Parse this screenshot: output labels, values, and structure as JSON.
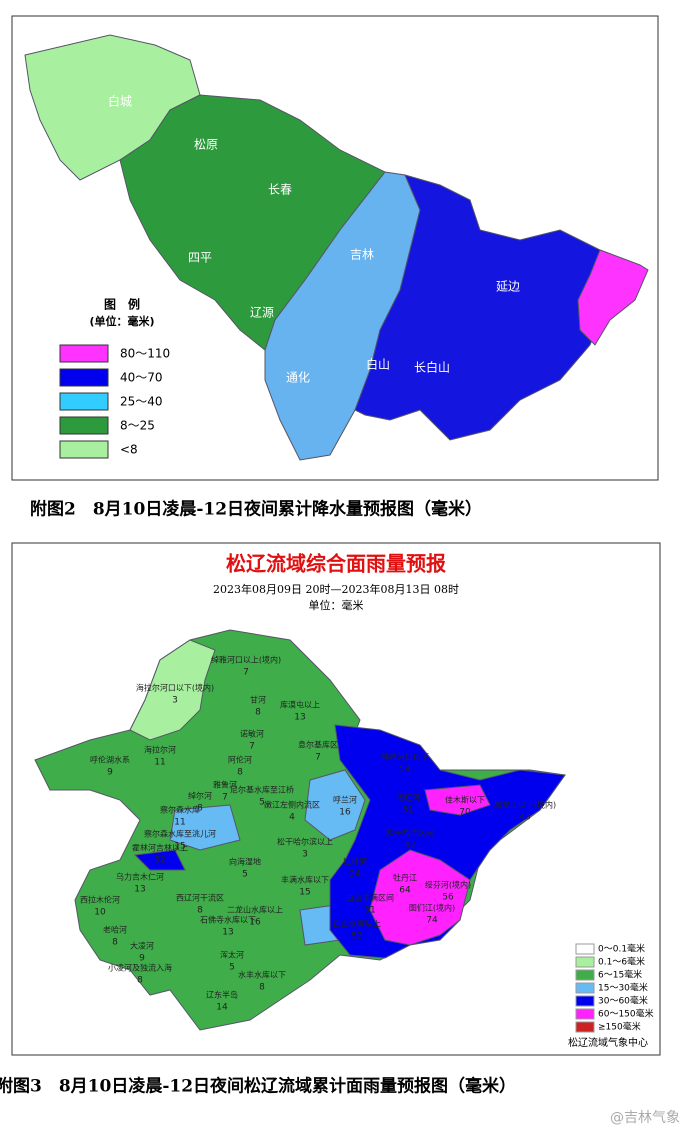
{
  "map1": {
    "labels": [
      "白城",
      "松原",
      "长春",
      "四平",
      "辽源",
      "吉林",
      "通化",
      "白山",
      "长白山",
      "延边"
    ],
    "legend": {
      "title": "图　例",
      "unit": "(单位：毫米)",
      "items": [
        {
          "label": "80～110",
          "color": "#ff33ff"
        },
        {
          "label": "40～70",
          "color": "#0000ee"
        },
        {
          "label": "25～40",
          "color": "#33ccff"
        },
        {
          "label": "8～25",
          "color": "#2e9a3e"
        },
        {
          "label": "<8",
          "color": "#a8f0a0"
        }
      ]
    },
    "caption": "附图2　8月10日凌晨-12日夜间累计降水量预报图（毫米）"
  },
  "map2": {
    "title": "松辽流域综合面雨量预报",
    "subtitle": "2023年08月09日 20时—2023年08月13日 08时",
    "unit": "单位：毫米",
    "regions": [
      {
        "name": "绰雅河口以上(境内)",
        "value": 7
      },
      {
        "name": "海拉尔河口以下(境内)",
        "value": 3
      },
      {
        "name": "甘河",
        "value": 8
      },
      {
        "name": "库漠屯以上",
        "value": 13
      },
      {
        "name": "诺敏河",
        "value": 7
      },
      {
        "name": "息尔基库区",
        "value": 7
      },
      {
        "name": "呼伦湖水系",
        "value": 9
      },
      {
        "name": "海拉尔河",
        "value": 11
      },
      {
        "name": "阿伦河",
        "value": 8
      },
      {
        "name": "雅鲁河",
        "value": 7
      },
      {
        "name": "绰尔河",
        "value": 8
      },
      {
        "name": "尼尔基水库至江桥",
        "value": 5
      },
      {
        "name": "嫩江左侧内流区",
        "value": 4
      },
      {
        "name": "呼兰河",
        "value": 16
      },
      {
        "name": "察尔森水库",
        "value": 11
      },
      {
        "name": "察尔森水库至洮儿河",
        "value": 15
      },
      {
        "name": "霍林河吉林以上",
        "value": 32
      },
      {
        "name": "向海湿地",
        "value": 5
      },
      {
        "name": "松干哈尔滨以上",
        "value": 3
      },
      {
        "name": "绰雅河口以下",
        "value": 54
      },
      {
        "name": "汤旺河",
        "value": 51
      },
      {
        "name": "佳木斯以下",
        "value": 70
      },
      {
        "name": "黑龙江以下(境内)",
        "value": 43
      },
      {
        "name": "松干哈佳区间",
        "value": 42
      },
      {
        "name": "拉林河",
        "value": 24
      },
      {
        "name": "牡丹江",
        "value": 64
      },
      {
        "name": "绥芬河(境内)",
        "value": 56
      },
      {
        "name": "图们江(境内)",
        "value": 74
      },
      {
        "name": "白山丰满区间",
        "value": 31
      },
      {
        "name": "丰满水库以下",
        "value": 15
      },
      {
        "name": "白山水库以上",
        "value": 52
      },
      {
        "name": "二龙山水库以上",
        "value": 16
      },
      {
        "name": "乌力吉木仁河",
        "value": 13
      },
      {
        "name": "西拉木伦河",
        "value": 10
      },
      {
        "name": "西辽河干流区",
        "value": 8
      },
      {
        "name": "石佛寺水库以下",
        "value": 13
      },
      {
        "name": "老哈河",
        "value": 8
      },
      {
        "name": "大凌河",
        "value": 9
      },
      {
        "name": "小凌河及独流入海",
        "value": 8
      },
      {
        "name": "浑太河",
        "value": 5
      },
      {
        "name": "水丰水库以下",
        "value": 8
      },
      {
        "name": "辽东半岛",
        "value": 14
      }
    ],
    "legend": [
      {
        "label": "0～0.1毫米",
        "color": "#ffffff"
      },
      {
        "label": "0.1～6毫米",
        "color": "#a8f0a0"
      },
      {
        "label": "6～15毫米",
        "color": "#3fae4a"
      },
      {
        "label": "15～30毫米",
        "color": "#66bbf5"
      },
      {
        "label": "30～60毫米",
        "color": "#0000ee"
      },
      {
        "label": "60～150毫米",
        "color": "#ff22ff"
      },
      {
        "label": "≥150毫米",
        "color": "#cc2222"
      }
    ],
    "source": "松辽流域气象中心",
    "caption": "附图3　8月10日凌晨-12日夜间松辽流域累计面雨量预报图（毫米）"
  },
  "watermark": "@吉林气象"
}
